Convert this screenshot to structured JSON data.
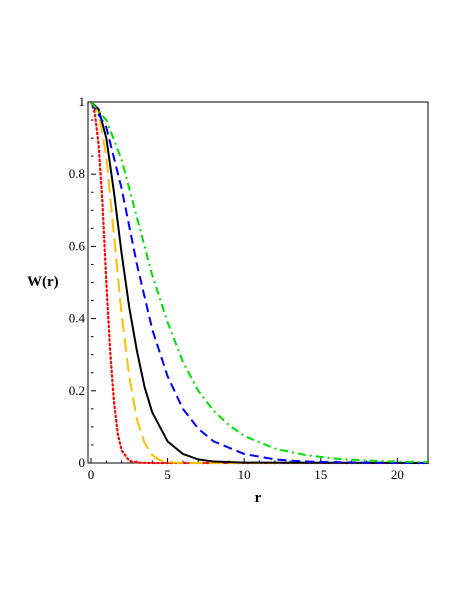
{
  "chart_data": {
    "type": "line",
    "title": "",
    "xlabel": "r",
    "ylabel": "W(r)",
    "xlim": [
      0,
      22
    ],
    "ylim": [
      0,
      1
    ],
    "x_ticks": [
      0,
      5,
      10,
      15,
      20
    ],
    "y_ticks": [
      0,
      0.2,
      0.4,
      0.6,
      0.8,
      1
    ],
    "x_tick_labels": [
      "0",
      "5",
      "10",
      "15",
      "20"
    ],
    "y_tick_labels": [
      "0",
      "0.2",
      "0.4",
      "0.6",
      "0.8",
      "1"
    ],
    "grid": false,
    "legend": "none",
    "series": [
      {
        "color": "#ff0000",
        "style": "dotted",
        "x": [
          0,
          0.25,
          0.5,
          0.75,
          1,
          1.25,
          1.5,
          1.75,
          2,
          2.5,
          3,
          4,
          22
        ],
        "y": [
          1,
          0.97,
          0.88,
          0.72,
          0.5,
          0.31,
          0.17,
          0.08,
          0.035,
          0.006,
          0.001,
          0,
          0
        ]
      },
      {
        "color": "#ffc000",
        "style": "long-dash",
        "x": [
          0,
          0.5,
          1,
          1.5,
          2,
          2.5,
          3,
          3.5,
          4,
          4.5,
          5,
          6,
          22
        ],
        "y": [
          1,
          0.97,
          0.85,
          0.63,
          0.41,
          0.24,
          0.12,
          0.055,
          0.022,
          0.008,
          0.003,
          0,
          0
        ]
      },
      {
        "color": "#000000",
        "style": "solid",
        "x": [
          0,
          0.5,
          1,
          1.5,
          2,
          2.5,
          3,
          3.5,
          4,
          5,
          6,
          7,
          8,
          10,
          22
        ],
        "y": [
          1,
          0.98,
          0.9,
          0.75,
          0.58,
          0.43,
          0.31,
          0.21,
          0.14,
          0.06,
          0.025,
          0.01,
          0.004,
          0.001,
          0
        ]
      },
      {
        "color": "#0000ff",
        "style": "dashed",
        "x": [
          0,
          1,
          2,
          3,
          4,
          5,
          6,
          7,
          8,
          10,
          12,
          14,
          16,
          18,
          22
        ],
        "y": [
          1,
          0.93,
          0.76,
          0.55,
          0.37,
          0.24,
          0.15,
          0.095,
          0.06,
          0.025,
          0.01,
          0.004,
          0.002,
          0.001,
          0
        ]
      },
      {
        "color": "#00e000",
        "style": "dash-dot",
        "x": [
          0,
          1,
          2,
          3,
          4,
          5,
          6,
          7,
          8,
          9,
          10,
          12,
          14,
          16,
          18,
          20,
          22
        ],
        "y": [
          1,
          0.95,
          0.84,
          0.68,
          0.52,
          0.39,
          0.28,
          0.2,
          0.145,
          0.105,
          0.075,
          0.04,
          0.022,
          0.012,
          0.007,
          0.004,
          0.002
        ]
      }
    ]
  }
}
